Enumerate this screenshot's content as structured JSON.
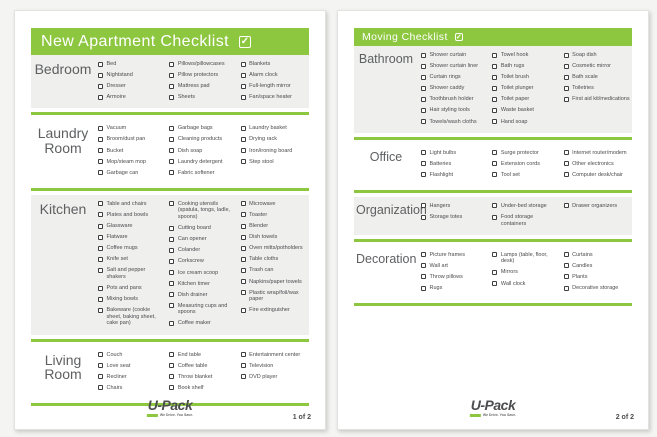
{
  "theme": {
    "green": "#8dc63f",
    "section_shade": "#efefee",
    "label_color": "#5e5f61",
    "item_color": "#4a4b4d"
  },
  "pages": [
    {
      "title": "New Apartment Checklist",
      "page_number": "1 of 2",
      "logo": {
        "text": "U-Pack",
        "tagline": "We Drive. You Save."
      },
      "sections": [
        {
          "label": "Bedroom",
          "shaded": true,
          "columns": [
            [
              "Bed",
              "Nightstand",
              "Dresser",
              "Armoire"
            ],
            [
              "Pillows/pillowcases",
              "Pillow protectors",
              "Mattress pad",
              "Sheets"
            ],
            [
              "Blankets",
              "Alarm clock",
              "Full-length mirror",
              "Fan/space heater"
            ]
          ]
        },
        {
          "label": "Laundry Room",
          "shaded": false,
          "columns": [
            [
              "Vacuum",
              "Broom/dust pan",
              "Bucket",
              "Mop/steam mop",
              "Garbage can"
            ],
            [
              "Garbage bags",
              "Cleaning products",
              "Dish soap",
              "Laundry detergent",
              "Fabric softener"
            ],
            [
              "Laundry basket",
              "Drying rack",
              "Iron/ironing board",
              "Step stool"
            ]
          ]
        },
        {
          "label": "Kitchen",
          "shaded": true,
          "columns": [
            [
              "Table and chairs",
              "Plates and bowls",
              "Glassware",
              "Flatware",
              "Coffee mugs",
              "Knife set",
              "Salt and pepper shakers",
              "Pots and pans",
              "Mixing bowls",
              "Bakeware (cookie sheet, baking sheet, cake pan)"
            ],
            [
              "Cooking utensils (spatula, tongs, ladle, spoons)",
              "Cutting board",
              "Can opener",
              "Colander",
              "Corkscrew",
              "Ice cream scoop",
              "Kitchen timer",
              "Dish drainer",
              "Measuring cups and spoons",
              "Coffee maker"
            ],
            [
              "Microwave",
              "Toaster",
              "Blender",
              "Dish towels",
              "Oven mitts/potholders",
              "Table cloths",
              "Trash can",
              "Napkins/paper towels",
              "Plastic wrap/foil/wax paper",
              "Fire extinguisher"
            ]
          ]
        },
        {
          "label": "Living Room",
          "shaded": false,
          "columns": [
            [
              "Couch",
              "Love seat",
              "Recliner",
              "Chairs"
            ],
            [
              "End table",
              "Coffee table",
              "Throw blanket",
              "Book shelf"
            ],
            [
              "Entertainment center",
              "Television",
              "DVD player"
            ]
          ]
        }
      ]
    },
    {
      "title": "Moving Checklist",
      "page_number": "2 of 2",
      "logo": {
        "text": "U-Pack",
        "tagline": "We Drive. You Save."
      },
      "sections": [
        {
          "label": "Bathroom",
          "shaded": true,
          "columns": [
            [
              "Shower curtain",
              "Shower curtain liner",
              "Curtain rings",
              "Shower caddy",
              "Toothbrush holder",
              "Hair styling tools",
              "Towels/wash cloths"
            ],
            [
              "Towel hook",
              "Bath rugs",
              "Toilet brush",
              "Toilet plunger",
              "Toilet paper",
              "Waste basket",
              "Hand soap"
            ],
            [
              "Soap dish",
              "Cosmetic mirror",
              "Bath scale",
              "Toiletries",
              "First aid kit/medications"
            ]
          ]
        },
        {
          "label": "Office",
          "shaded": false,
          "columns": [
            [
              "Light bulbs",
              "Batteries",
              "Flashlight"
            ],
            [
              "Surge protector",
              "Extension cords",
              "Tool set"
            ],
            [
              "Internet router/modem",
              "Other electronics",
              "Computer desk/chair"
            ]
          ]
        },
        {
          "label": "Organization",
          "shaded": true,
          "columns": [
            [
              "Hangers",
              "Storage totes"
            ],
            [
              "Under-bed storage",
              "Food storage containers"
            ],
            [
              "Drawer organizers"
            ]
          ]
        },
        {
          "label": "Decoration",
          "shaded": false,
          "columns": [
            [
              "Picture frames",
              "Wall art",
              "Throw pillows",
              "Rugs"
            ],
            [
              "Lamps (table, floor, desk)",
              "Mirrors",
              "Wall clock"
            ],
            [
              "Curtains",
              "Candles",
              "Plants",
              "Decorative storage"
            ]
          ]
        }
      ]
    }
  ]
}
